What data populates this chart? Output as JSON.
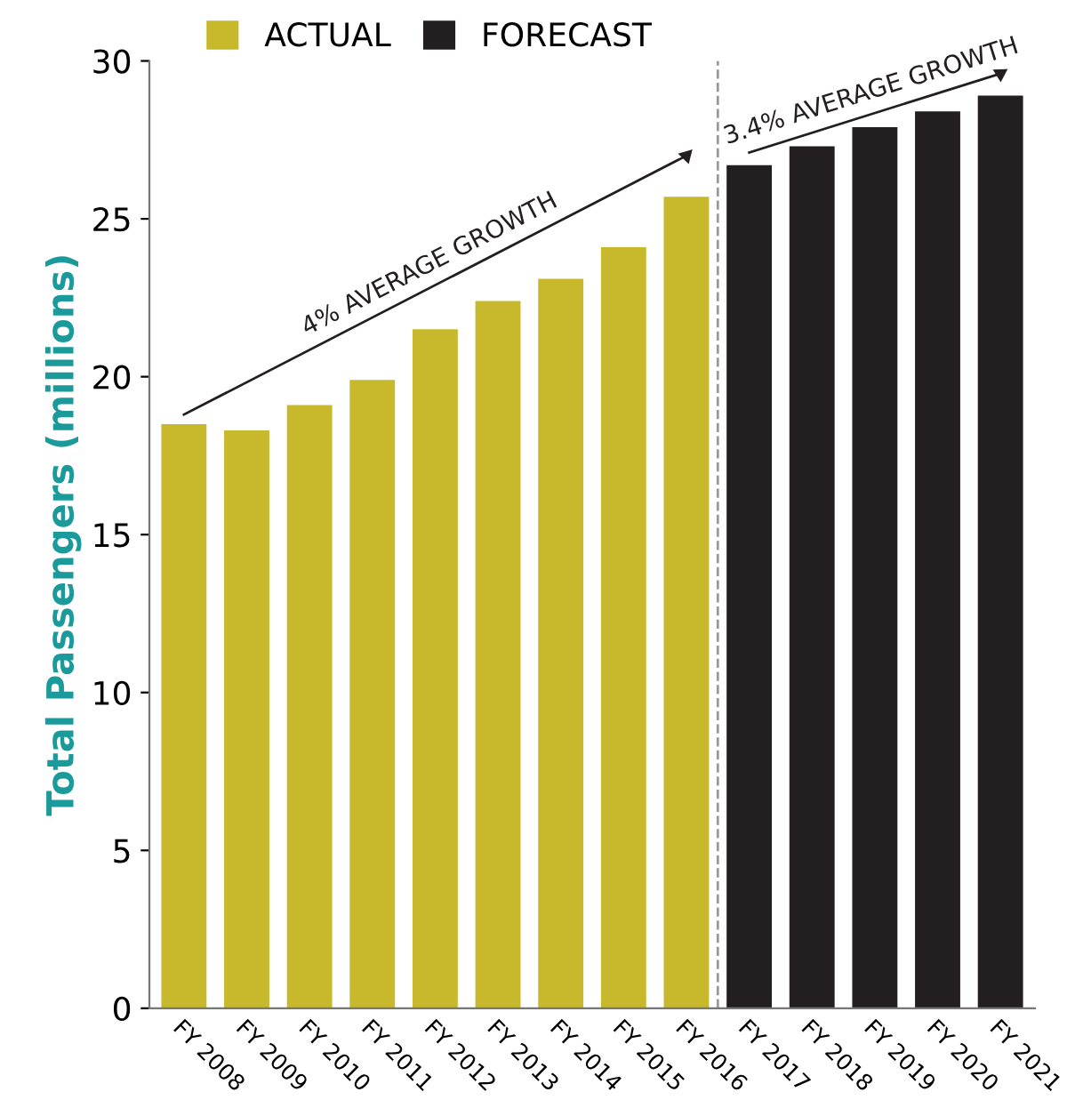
{
  "chart_data": {
    "type": "bar",
    "ylabel": "Total Passengers (millions)",
    "categories": [
      "FY 2008",
      "FY 2009",
      "FY 2010",
      "FY 2011",
      "FY 2012",
      "FY 2013",
      "FY 2014",
      "FY 2015",
      "FY 2016",
      "FY 2017",
      "FY 2018",
      "FY 2019",
      "FY 2020",
      "FY 2021"
    ],
    "series": [
      {
        "name": "ACTUAL",
        "color": "#c8b92c",
        "values": [
          18.5,
          18.3,
          19.1,
          19.9,
          21.5,
          22.4,
          23.1,
          24.1,
          25.7,
          null,
          null,
          null,
          null,
          null
        ]
      },
      {
        "name": "FORECAST",
        "color": "#231f20",
        "values": [
          null,
          null,
          null,
          null,
          null,
          null,
          null,
          null,
          null,
          26.7,
          27.3,
          27.9,
          28.4,
          28.9
        ]
      },
      {
        "type": "line",
        "color": "#231f20",
        "values": [
          18.8,
          null,
          null,
          null,
          null,
          null,
          null,
          null,
          27.0,
          null,
          null,
          null,
          null,
          null
        ]
      },
      {
        "type": "line",
        "color": "#231f20",
        "values": [
          null,
          null,
          null,
          null,
          null,
          null,
          null,
          null,
          null,
          27.1,
          null,
          null,
          null,
          29.6
        ]
      }
    ],
    "annotations": [
      "4% AVERAGE GROWTH",
      "3.4% AVERAGE GROWTH"
    ],
    "ylim": [
      0,
      30
    ],
    "yticks": [
      0,
      5,
      10,
      15,
      20,
      25,
      30
    ],
    "grid": false,
    "legend": "top left"
  }
}
